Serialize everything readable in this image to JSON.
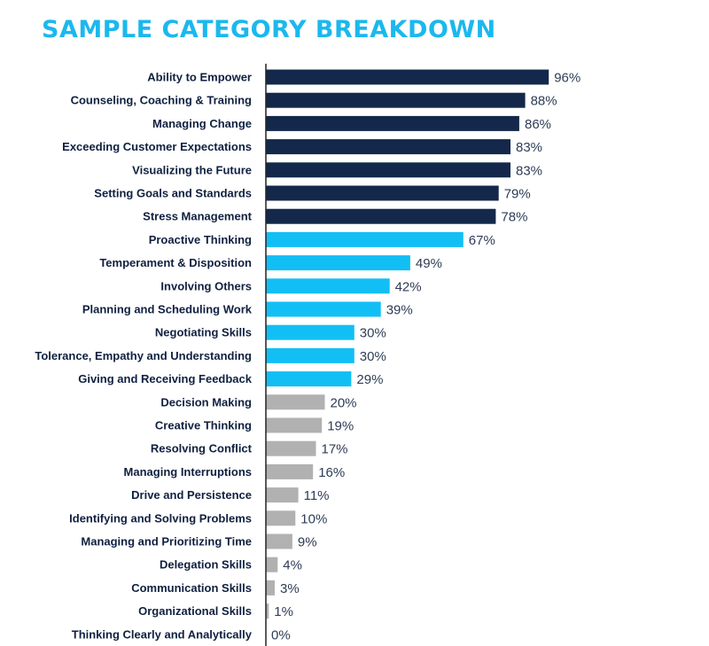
{
  "title": "SAMPLE CATEGORY BREAKDOWN",
  "colors": {
    "title": "#1bb8ee",
    "high": "#14284b",
    "mid": "#12bff4",
    "low": "#b1b1b1",
    "axis": "#222222",
    "label_text": "#0f2040",
    "value_text": "#2e3c55"
  },
  "chart_data": {
    "type": "bar",
    "orientation": "horizontal",
    "xlim": [
      0,
      100
    ],
    "value_suffix": "%",
    "grid": false,
    "legend": "none",
    "categories": [
      "Ability to Empower",
      "Counseling, Coaching & Training",
      "Managing Change",
      "Exceeding Customer Expectations",
      "Visualizing the Future",
      "Setting Goals and Standards",
      "Stress Management",
      "Proactive Thinking",
      "Temperament & Disposition",
      "Involving Others",
      "Planning and Scheduling Work",
      "Negotiating Skills",
      "Tolerance, Empathy and Understanding",
      "Giving and Receiving Feedback",
      "Decision Making",
      "Creative Thinking",
      "Resolving Conflict",
      "Managing Interruptions",
      "Drive and Persistence",
      "Identifying and Solving Problems",
      "Managing and Prioritizing Time",
      "Delegation Skills",
      "Communication Skills",
      "Organizational Skills",
      "Thinking Clearly and Analytically"
    ],
    "values": [
      96,
      88,
      86,
      83,
      83,
      79,
      78,
      67,
      49,
      42,
      39,
      30,
      30,
      29,
      20,
      19,
      17,
      16,
      11,
      10,
      9,
      4,
      3,
      1,
      0
    ],
    "value_labels": [
      "96%",
      "88%",
      "86%",
      "83%",
      "83%",
      "79%",
      "78%",
      "67%",
      "49%",
      "42%",
      "39%",
      "30%",
      "30%",
      "29%",
      "20%",
      "19%",
      "17%",
      "16%",
      "11%",
      "10%",
      "9%",
      "4%",
      "3%",
      "1%",
      "0%"
    ],
    "tiers": [
      "high",
      "high",
      "high",
      "high",
      "high",
      "high",
      "high",
      "mid",
      "mid",
      "mid",
      "mid",
      "mid",
      "mid",
      "mid",
      "low",
      "low",
      "low",
      "low",
      "low",
      "low",
      "low",
      "low",
      "low",
      "low",
      "low"
    ]
  }
}
